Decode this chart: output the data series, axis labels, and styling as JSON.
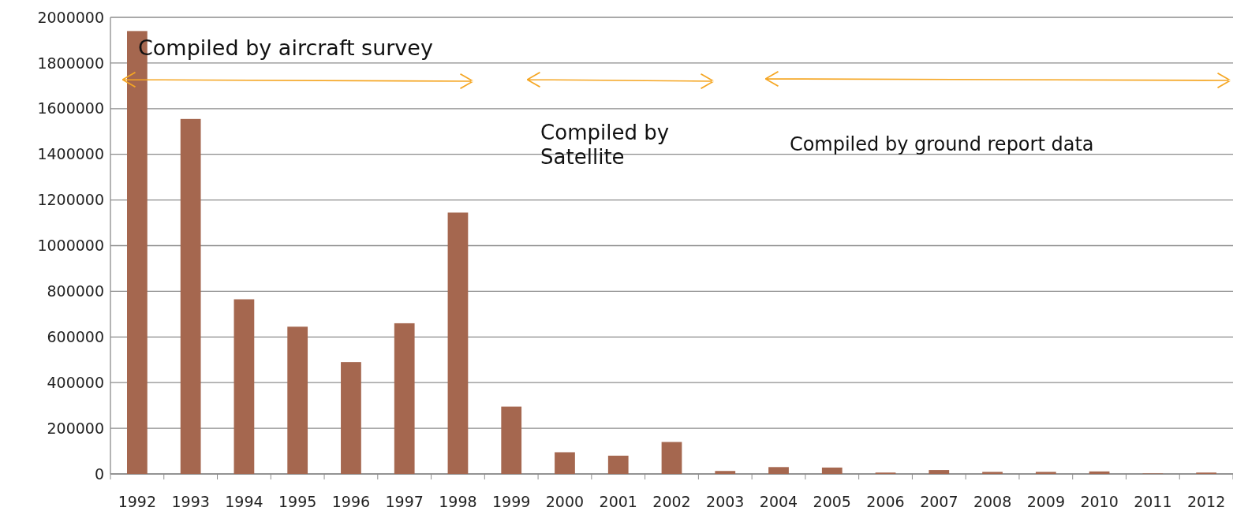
{
  "chart_data": {
    "type": "bar",
    "categories": [
      "1992",
      "1993",
      "1994",
      "1995",
      "1996",
      "1997",
      "1998",
      "1999",
      "2000",
      "2001",
      "2002",
      "2003",
      "2004",
      "2005",
      "2006",
      "2007",
      "2008",
      "2009",
      "2010",
      "2011",
      "2012"
    ],
    "values": [
      1940000,
      1555000,
      765000,
      645000,
      490000,
      660000,
      1145000,
      295000,
      95000,
      80000,
      140000,
      13000,
      30000,
      28000,
      6000,
      17000,
      9000,
      9000,
      11000,
      2000,
      6000
    ],
    "color": "#a5674f",
    "ylim": [
      0,
      2000000
    ],
    "yticks": [
      0,
      200000,
      400000,
      600000,
      800000,
      1000000,
      1200000,
      1400000,
      1600000,
      1800000,
      2000000
    ],
    "grid": "y",
    "annotations": [
      "Compiled  by aircraft survey",
      "Compiled by Satellite",
      "Compiled by ground report data"
    ]
  }
}
